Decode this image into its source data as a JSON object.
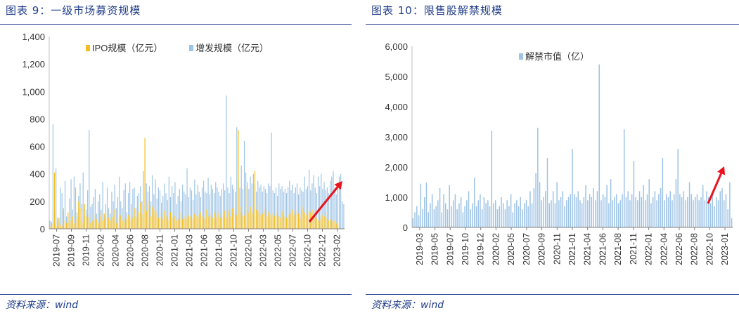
{
  "charts": [
    {
      "title": "图表 9：一级市场募资规模",
      "source": "资料来源：wind",
      "chart_data": {
        "type": "bar",
        "title": "图表 9：一级市场募资规模",
        "xlabel": "",
        "ylabel": "",
        "ylim": [
          0,
          1400
        ],
        "yticks": [
          0,
          200,
          400,
          600,
          800,
          1000,
          1200,
          1400
        ],
        "ytick_labels": [
          "0",
          "200",
          "400",
          "600",
          "800",
          "1,000",
          "1,200",
          "1,400"
        ],
        "xtick_labels": [
          "2019-07",
          "2019-09",
          "2019-11",
          "2020-02",
          "2020-04",
          "2020-06",
          "2020-08",
          "2020-11",
          "2021-01",
          "2021-03",
          "2021-06",
          "2021-08",
          "2021-10",
          "2022-01",
          "2022-03",
          "2022-05",
          "2022-07",
          "2022-10",
          "2022-12",
          "2023-02"
        ],
        "legend_position": "top",
        "grid": false,
        "series": [
          {
            "name": "IPO规模（亿元）",
            "color": "#f5be1e",
            "values": [
              10,
              40,
              35,
              410,
              20,
              50,
              80,
              30,
              20,
              150,
              60,
              40,
              120,
              30,
              60,
              90,
              40,
              300,
              70,
              200,
              150,
              60,
              40,
              180,
              90,
              110,
              80,
              40,
              60,
              60,
              100,
              70,
              40,
              120,
              90,
              60,
              110,
              70,
              130,
              80,
              60,
              90,
              80,
              140,
              40,
              70,
              90,
              100,
              60,
              50,
              80,
              70,
              100,
              60,
              90,
              80,
              150,
              90,
              70,
              120,
              190,
              110,
              80,
              660,
              130,
              200,
              170,
              90,
              160,
              140,
              100,
              120,
              80,
              90,
              110,
              70,
              130,
              90,
              80,
              60,
              120,
              80,
              100,
              90,
              60,
              70,
              80,
              120,
              70,
              90,
              60,
              80,
              100,
              90,
              80,
              70,
              110,
              90,
              80,
              100,
              120,
              90,
              80,
              70,
              140,
              90,
              110,
              100,
              80,
              120,
              70,
              90,
              110,
              80,
              100,
              90,
              130,
              80,
              140,
              120,
              90,
              150,
              110,
              130,
              100,
              720,
              160,
              120,
              90,
              100,
              300,
              140,
              120,
              160,
              110,
              130,
              420,
              140,
              120,
              180,
              100,
              110,
              130,
              150,
              90,
              120,
              100,
              80,
              110,
              90,
              120,
              100,
              90,
              80,
              130,
              110,
              90,
              80,
              100,
              120,
              110,
              140,
              100,
              120,
              130,
              110,
              80,
              140,
              160,
              120,
              100,
              110,
              130,
              120,
              140,
              100,
              90,
              80,
              60,
              90,
              70,
              100,
              90,
              120,
              80,
              60,
              70,
              60,
              50,
              60,
              40,
              30,
              30
            ],
            "note_values_approximate": "visual read"
          },
          {
            "name": "增发规模（亿元）",
            "color": "#9dc3e6",
            "values": [
              60,
              50,
              760,
              120,
              440,
              80,
              60,
              300,
              260,
              120,
              350,
              90,
              60,
              220,
              360,
              140,
              380,
              90,
              120,
              240,
              330,
              180,
              410,
              90,
              140,
              280,
              720,
              160,
              180,
              230,
              290,
              110,
              200,
              250,
              140,
              340,
              90,
              180,
              300,
              150,
              110,
              270,
              200,
              320,
              150,
              230,
              380,
              200,
              150,
              280,
              330,
              120,
              260,
              340,
              180,
              290,
              300,
              150,
              240,
              260,
              310,
              200,
              420,
              500,
              330,
              270,
              310,
              200,
              390,
              250,
              360,
              220,
              300,
              280,
              190,
              240,
              330,
              260,
              210,
              380,
              230,
              310,
              260,
              340,
              180,
              240,
              290,
              200,
              320,
              270,
              250,
              440,
              230,
              300,
              280,
              210,
              360,
              250,
              320,
              270,
              230,
              300,
              350,
              270,
              260,
              370,
              250,
              320,
              290,
              260,
              340,
              300,
              270,
              240,
              290,
              330,
              280,
              970,
              300,
              260,
              380,
              320,
              290,
              270,
              740,
              350,
              300,
              460,
              290,
              640,
              410,
              340,
              290,
              380,
              330,
              400,
              300,
              270,
              350,
              300,
              320,
              270,
              310,
              290,
              260,
              330,
              310,
              700,
              280,
              260,
              300,
              240,
              330,
              290,
              310,
              270,
              290,
              260,
              300,
              350,
              280,
              320,
              260,
              300,
              330,
              250,
              300,
              280,
              270,
              380,
              290,
              310,
              430,
              280,
              330,
              390,
              300,
              260,
              380,
              310,
              400,
              290,
              340,
              280,
              300,
              260,
              350,
              380,
              420,
              300,
              250,
              300,
              380,
              400,
              200,
              180
            ]
          }
        ]
      }
    },
    {
      "title": "图表 10：限售股解禁规模",
      "source": "资料来源：wind",
      "chart_data": {
        "type": "bar",
        "title": "图表 10：限售股解禁规模",
        "xlabel": "",
        "ylabel": "",
        "ylim": [
          0,
          6000
        ],
        "yticks": [
          0,
          1000,
          2000,
          3000,
          4000,
          5000,
          6000
        ],
        "ytick_labels": [
          "0",
          "1,000",
          "2,000",
          "3,000",
          "4,000",
          "5,000",
          "6,000"
        ],
        "xtick_labels": [
          "2019-03",
          "2019-05",
          "2019-07",
          "2019-10",
          "2019-12",
          "2020-02",
          "2020-05",
          "2020-07",
          "2020-09",
          "2020-11",
          "2021-01",
          "2021-04",
          "2021-06",
          "2021-08",
          "2021-11",
          "2022-01",
          "2022-04",
          "2022-06",
          "2022-08",
          "2022-10",
          "2023-01"
        ],
        "legend_position": "top",
        "grid": false,
        "series": [
          {
            "name": "解禁市值（亿）",
            "color": "#9dc3e6",
            "values": [
              300,
              500,
              700,
              400,
              1450,
              600,
              1000,
              1480,
              500,
              800,
              1100,
              600,
              700,
              900,
              1300,
              500,
              1100,
              800,
              600,
              1400,
              700,
              900,
              1100,
              600,
              800,
              1000,
              500,
              700,
              900,
              1200,
              600,
              800,
              1650,
              700,
              900,
              1100,
              600,
              1000,
              800,
              900,
              700,
              3200,
              800,
              900,
              600,
              700,
              1000,
              800,
              600,
              900,
              700,
              1100,
              500,
              800,
              900,
              700,
              1000,
              600,
              800,
              900,
              700,
              1200,
              800,
              1300,
              1800,
              3300,
              1500,
              900,
              1000,
              1200,
              2300,
              800,
              900,
              1200,
              800,
              1500,
              900,
              1000,
              1200,
              700,
              900,
              1000,
              1100,
              2600,
              1100,
              1000,
              1200,
              900,
              800,
              1000,
              1400,
              900,
              1100,
              1000,
              1300,
              900,
              1200,
              5400,
              900,
              1100,
              1000,
              1400,
              800,
              1600,
              900,
              1000,
              1100,
              800,
              900,
              1100,
              3250,
              1000,
              1200,
              900,
              1100,
              2200,
              1000,
              900,
              1200,
              1000,
              1400,
              900,
              1100,
              1600,
              800,
              1000,
              1200,
              900,
              1100,
              1300,
              2300,
              900,
              1100,
              1000,
              1200,
              900,
              1100,
              1600,
              2600,
              1100,
              1000,
              1200,
              900,
              1000,
              1500,
              1100,
              900,
              1000,
              1100,
              900,
              1000,
              1400,
              900,
              1200,
              1000,
              800,
              1100,
              700,
              1000,
              900,
              1200,
              1300,
              900,
              1100,
              600,
              1500,
              300
            ]
          }
        ]
      }
    }
  ]
}
